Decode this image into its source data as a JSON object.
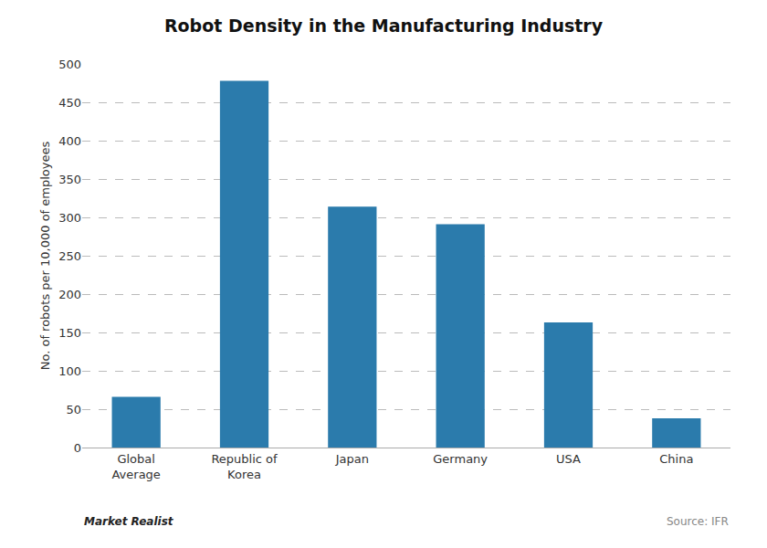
{
  "chart_data": {
    "type": "bar",
    "title": "Robot Density in the Manufacturing Industry",
    "ylabel": "No. of robots per 10,000 of employees",
    "categories": [
      "Global\nAverage",
      "Republic of\nKorea",
      "Japan",
      "Germany",
      "USA",
      "China"
    ],
    "values": [
      66,
      478,
      314,
      291,
      163,
      38
    ],
    "color": "#2b7bac",
    "ylim": [
      0,
      500
    ],
    "yticks": [
      0,
      50,
      100,
      150,
      200,
      250,
      300,
      350,
      400,
      450,
      500
    ],
    "grid": true,
    "annotations": [
      "Market Realist",
      "Source: IFR"
    ]
  }
}
